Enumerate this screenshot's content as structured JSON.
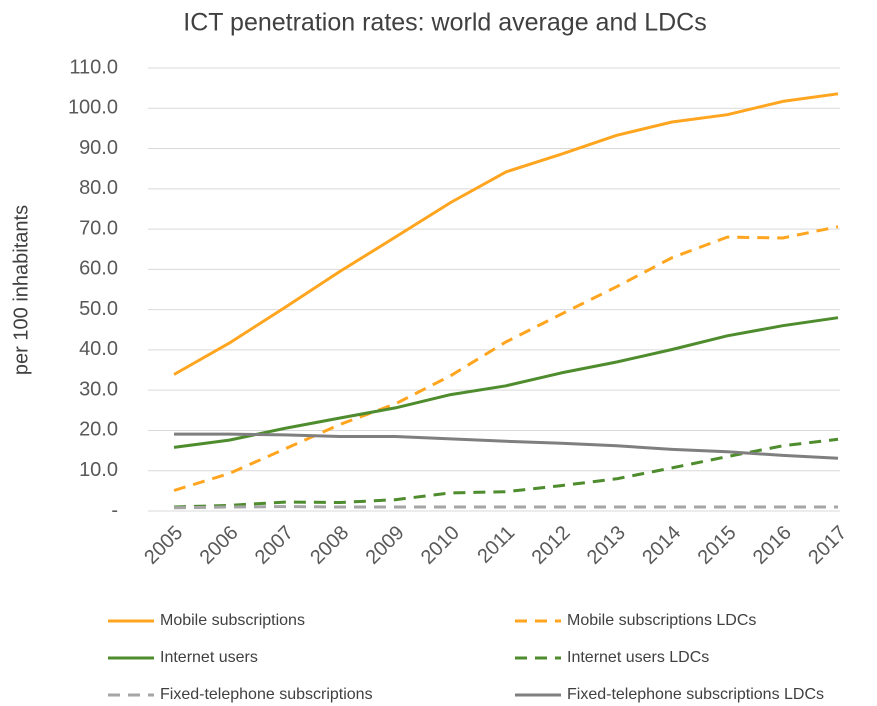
{
  "chart_data": {
    "type": "line",
    "title": "ICT penetration rates: world average and LDCs",
    "y_label": "per 100 inhabitants",
    "categories": [
      "2005",
      "2006",
      "2007",
      "2008",
      "2009",
      "2010",
      "2011",
      "2012",
      "2013",
      "2014",
      "2015",
      "2016",
      "2017"
    ],
    "series": [
      {
        "name": "Mobile subscriptions",
        "color": "#ffa51f",
        "dashed": false,
        "values": [
          33.9,
          41.7,
          50.5,
          59.5,
          68.0,
          76.6,
          84.2,
          88.6,
          93.3,
          96.6,
          98.4,
          101.7,
          103.6
        ]
      },
      {
        "name": "Mobile subscriptions LDCs",
        "color": "#ffa51f",
        "dashed": true,
        "values": [
          5.1,
          9.3,
          15.4,
          21.5,
          26.6,
          33.6,
          42.0,
          48.9,
          55.7,
          62.9,
          68.0,
          67.8,
          70.6
        ]
      },
      {
        "name": "Internet users",
        "color": "#4e8c2e",
        "dashed": false,
        "values": [
          15.8,
          17.6,
          20.5,
          23.1,
          25.6,
          28.9,
          31.1,
          34.3,
          37.0,
          40.1,
          43.5,
          46.0,
          48.0
        ]
      },
      {
        "name": "Internet users LDCs",
        "color": "#4e8c2e",
        "dashed": true,
        "values": [
          1.0,
          1.4,
          2.2,
          2.1,
          2.8,
          4.5,
          4.8,
          6.3,
          8.0,
          10.7,
          13.5,
          16.2,
          17.8
        ]
      },
      {
        "name": "Fixed-telephone subscriptions",
        "color": "#a6a6a6",
        "dashed": true,
        "values": [
          0.8,
          1.0,
          1.1,
          1.0,
          1.0,
          1.0,
          1.0,
          1.0,
          1.0,
          1.0,
          1.0,
          1.0,
          1.0
        ]
      },
      {
        "name": "Fixed-telephone subscriptions LDCs",
        "color": "#7f7f7f",
        "dashed": false,
        "values": [
          19.1,
          19.1,
          18.9,
          18.5,
          18.5,
          17.9,
          17.3,
          16.8,
          16.2,
          15.3,
          14.7,
          13.8,
          13.1
        ]
      }
    ],
    "ylim": [
      0,
      110
    ],
    "yticks": [
      {
        "value": 0,
        "label": "-"
      },
      {
        "value": 10,
        "label": "10.0"
      },
      {
        "value": 20,
        "label": "20.0"
      },
      {
        "value": 30,
        "label": "30.0"
      },
      {
        "value": 40,
        "label": "40.0"
      },
      {
        "value": 50,
        "label": "50.0"
      },
      {
        "value": 60,
        "label": "60.0"
      },
      {
        "value": 70,
        "label": "70.0"
      },
      {
        "value": 80,
        "label": "80.0"
      },
      {
        "value": 90,
        "label": "90.0"
      },
      {
        "value": 100,
        "label": "100.0"
      },
      {
        "value": 110,
        "label": "110.0"
      }
    ],
    "grid": true
  }
}
